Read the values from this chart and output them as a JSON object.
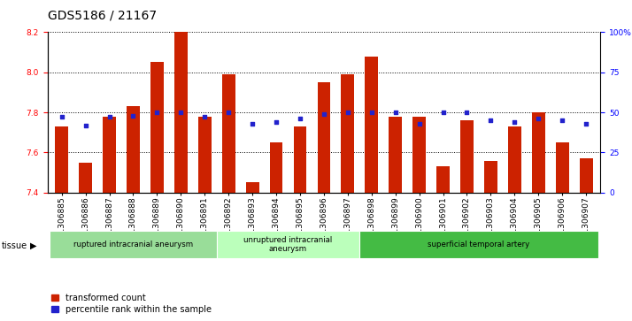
{
  "title": "GDS5186 / 21167",
  "samples": [
    "GSM1306885",
    "GSM1306886",
    "GSM1306887",
    "GSM1306888",
    "GSM1306889",
    "GSM1306890",
    "GSM1306891",
    "GSM1306892",
    "GSM1306893",
    "GSM1306894",
    "GSM1306895",
    "GSM1306896",
    "GSM1306897",
    "GSM1306898",
    "GSM1306899",
    "GSM1306900",
    "GSM1306901",
    "GSM1306902",
    "GSM1306903",
    "GSM1306904",
    "GSM1306905",
    "GSM1306906",
    "GSM1306907"
  ],
  "bar_values": [
    7.73,
    7.55,
    7.78,
    7.83,
    8.05,
    8.2,
    7.78,
    7.99,
    7.45,
    7.65,
    7.73,
    7.95,
    7.99,
    8.08,
    7.78,
    7.78,
    7.53,
    7.76,
    7.56,
    7.73,
    7.8,
    7.65,
    7.57
  ],
  "percentile_values": [
    47,
    42,
    47,
    48,
    50,
    50,
    47,
    50,
    43,
    44,
    46,
    49,
    50,
    50,
    50,
    43,
    50,
    50,
    45,
    44,
    46,
    45,
    43
  ],
  "ylim_left": [
    7.4,
    8.2
  ],
  "ylim_right": [
    0,
    100
  ],
  "yticks_left": [
    7.4,
    7.6,
    7.8,
    8.0,
    8.2
  ],
  "yticks_right": [
    0,
    25,
    50,
    75,
    100
  ],
  "ytick_labels_right": [
    "0",
    "25",
    "50",
    "75",
    "100%"
  ],
  "bar_color": "#CC2200",
  "dot_color": "#2222CC",
  "bar_bottom": 7.4,
  "groups": [
    {
      "label": "ruptured intracranial aneurysm",
      "start": 0,
      "end": 7,
      "color": "#99DD99"
    },
    {
      "label": "unruptured intracranial\naneurysm",
      "start": 7,
      "end": 13,
      "color": "#BBFFBB"
    },
    {
      "label": "superficial temporal artery",
      "start": 13,
      "end": 23,
      "color": "#44BB44"
    }
  ],
  "legend_labels": [
    "transformed count",
    "percentile rank within the sample"
  ],
  "legend_colors": [
    "#CC2200",
    "#2222CC"
  ],
  "tissue_label": "tissue",
  "background_color": "#FFFFFF",
  "plot_bg_color": "#FFFFFF",
  "title_fontsize": 10,
  "tick_fontsize": 6.5,
  "label_fontsize": 7
}
